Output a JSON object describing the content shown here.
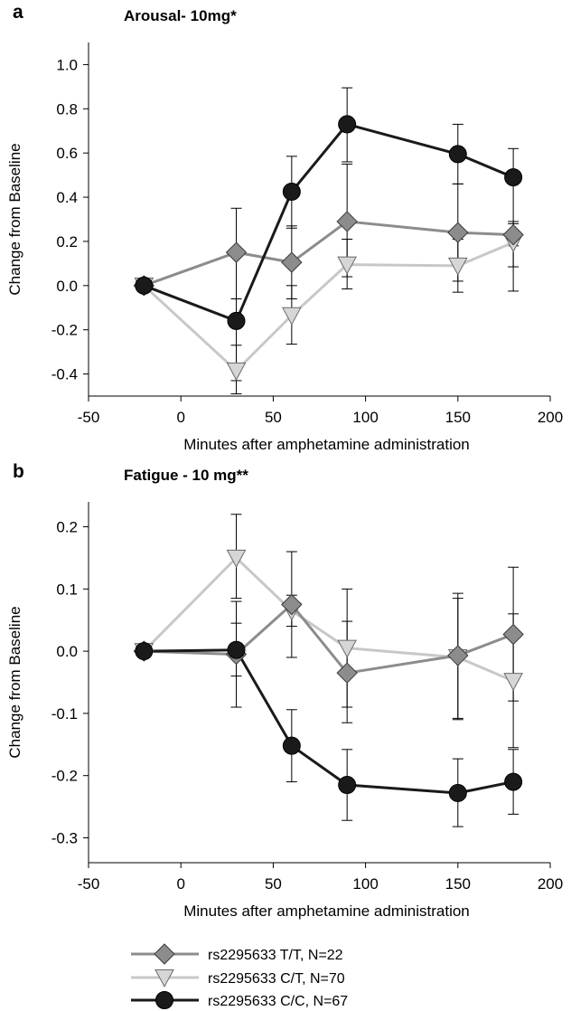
{
  "chart_data": [
    {
      "type": "line",
      "panel_label": "a",
      "title": "Arousal- 10mg*",
      "xlabel": "Minutes after amphetamine administration",
      "ylabel": "Change from Baseline",
      "xlim": [
        -50,
        200
      ],
      "ylim": [
        -0.5,
        1.1
      ],
      "xticks": [
        -50,
        0,
        50,
        100,
        150,
        200
      ],
      "xtick_labels": [
        "-50",
        "0",
        "50",
        "100",
        "150",
        "200"
      ],
      "yticks": [
        -0.4,
        -0.2,
        0.0,
        0.2,
        0.4,
        0.6,
        0.8,
        1.0
      ],
      "ytick_labels": [
        "-0.4",
        "-0.2",
        "0.0",
        "0.2",
        "0.4",
        "0.6",
        "0.8",
        "1.0"
      ],
      "grid": false,
      "x": [
        -20,
        30,
        60,
        90,
        150,
        180
      ],
      "series": [
        {
          "key": "tt",
          "values": [
            0.0,
            0.15,
            0.105,
            0.29,
            0.24,
            0.23
          ],
          "err_low": [
            0.0,
            -0.06,
            -0.06,
            0.04,
            0.02,
            0.18
          ],
          "err_high": [
            0.0,
            0.35,
            0.27,
            0.55,
            0.46,
            0.28
          ]
        },
        {
          "key": "ct",
          "values": [
            0.0,
            -0.385,
            -0.135,
            0.095,
            0.09,
            0.195
          ],
          "err_low": [
            0.0,
            -0.49,
            -0.265,
            -0.015,
            -0.03,
            0.085
          ],
          "err_high": [
            0.0,
            -0.27,
            0.0,
            0.21,
            0.21,
            0.29
          ]
        },
        {
          "key": "cc",
          "values": [
            0.0,
            -0.16,
            0.425,
            0.73,
            0.595,
            0.49
          ],
          "err_low": [
            0.0,
            -0.43,
            0.26,
            0.56,
            0.46,
            -0.025
          ],
          "err_high": [
            0.0,
            -0.06,
            0.585,
            0.895,
            0.73,
            0.62
          ]
        }
      ]
    },
    {
      "type": "line",
      "panel_label": "b",
      "title": "Fatigue - 10 mg**",
      "xlabel": "Minutes after amphetamine administration",
      "ylabel": "Change from Baseline",
      "xlim": [
        -50,
        200
      ],
      "ylim": [
        -0.34,
        0.24
      ],
      "xticks": [
        -50,
        0,
        50,
        100,
        150,
        200
      ],
      "xtick_labels": [
        "-50",
        "0",
        "50",
        "100",
        "150",
        "200"
      ],
      "yticks": [
        -0.3,
        -0.2,
        -0.1,
        0.0,
        0.1,
        0.2
      ],
      "ytick_labels": [
        "-0.3",
        "-0.2",
        "-0.1",
        "0.0",
        "0.1",
        "0.2"
      ],
      "grid": false,
      "x": [
        -20,
        30,
        60,
        90,
        150,
        180
      ],
      "series": [
        {
          "key": "tt",
          "values": [
            0.0,
            -0.005,
            0.075,
            -0.035,
            -0.007,
            0.027
          ],
          "err_low": [
            0.0,
            -0.09,
            -0.01,
            -0.115,
            -0.11,
            -0.08
          ],
          "err_high": [
            0.0,
            0.08,
            0.16,
            0.048,
            0.093,
            0.135
          ]
        },
        {
          "key": "ct",
          "values": [
            0.0,
            0.15,
            0.065,
            0.005,
            -0.01,
            -0.048
          ],
          "err_low": [
            0.0,
            0.085,
            0.04,
            -0.09,
            -0.108,
            -0.155
          ],
          "err_high": [
            0.0,
            0.22,
            0.09,
            0.1,
            0.085,
            0.06
          ]
        },
        {
          "key": "cc",
          "values": [
            0.0,
            0.002,
            -0.152,
            -0.215,
            -0.228,
            -0.21
          ],
          "err_low": [
            0.0,
            -0.04,
            -0.21,
            -0.272,
            -0.282,
            -0.262
          ],
          "err_high": [
            0.0,
            0.045,
            -0.094,
            -0.158,
            -0.173,
            -0.158
          ]
        }
      ]
    }
  ],
  "legend": {
    "placement": "bottom",
    "entries": [
      {
        "key": "tt",
        "label": "rs2295633 T/T, N=22"
      },
      {
        "key": "ct",
        "label": "rs2295633 C/T, N=70"
      },
      {
        "key": "cc",
        "label": "rs2295633 C/C, N=67"
      }
    ]
  },
  "series_styles": {
    "tt": {
      "line_color": "#8c8c8c",
      "fill_color": "#8c8c8c",
      "marker": "diamond"
    },
    "ct": {
      "line_color": "#c8c8c8",
      "fill_color": "#d6d6d6",
      "marker": "triangle-down"
    },
    "cc": {
      "line_color": "#1a1a1a",
      "fill_color": "#1a1a1a",
      "marker": "circle"
    }
  }
}
